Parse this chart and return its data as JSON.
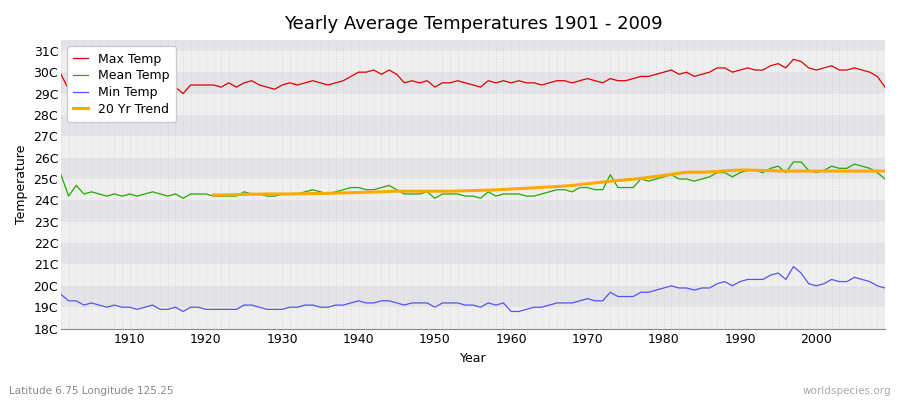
{
  "title": "Yearly Average Temperatures 1901 - 2009",
  "xlabel": "Year",
  "ylabel": "Temperature",
  "years": [
    1901,
    1902,
    1903,
    1904,
    1905,
    1906,
    1907,
    1908,
    1909,
    1910,
    1911,
    1912,
    1913,
    1914,
    1915,
    1916,
    1917,
    1918,
    1919,
    1920,
    1921,
    1922,
    1923,
    1924,
    1925,
    1926,
    1927,
    1928,
    1929,
    1930,
    1931,
    1932,
    1933,
    1934,
    1935,
    1936,
    1937,
    1938,
    1939,
    1940,
    1941,
    1942,
    1943,
    1944,
    1945,
    1946,
    1947,
    1948,
    1949,
    1950,
    1951,
    1952,
    1953,
    1954,
    1955,
    1956,
    1957,
    1958,
    1959,
    1960,
    1961,
    1962,
    1963,
    1964,
    1965,
    1966,
    1967,
    1968,
    1969,
    1970,
    1971,
    1972,
    1973,
    1974,
    1975,
    1976,
    1977,
    1978,
    1979,
    1980,
    1981,
    1982,
    1983,
    1984,
    1985,
    1986,
    1987,
    1988,
    1989,
    1990,
    1991,
    1992,
    1993,
    1994,
    1995,
    1996,
    1997,
    1998,
    1999,
    2000,
    2001,
    2002,
    2003,
    2004,
    2005,
    2006,
    2007,
    2008,
    2009
  ],
  "max_temp": [
    29.9,
    29.2,
    29.5,
    29.3,
    29.4,
    29.4,
    29.2,
    29.2,
    29.1,
    29.3,
    29.2,
    29.3,
    29.3,
    29.4,
    29.2,
    29.3,
    29.0,
    29.4,
    29.4,
    29.4,
    29.4,
    29.3,
    29.5,
    29.3,
    29.5,
    29.6,
    29.4,
    29.3,
    29.2,
    29.4,
    29.5,
    29.4,
    29.5,
    29.6,
    29.5,
    29.4,
    29.5,
    29.6,
    29.8,
    30.0,
    30.0,
    30.1,
    29.9,
    30.1,
    29.9,
    29.5,
    29.6,
    29.5,
    29.6,
    29.3,
    29.5,
    29.5,
    29.6,
    29.5,
    29.4,
    29.3,
    29.6,
    29.5,
    29.6,
    29.5,
    29.6,
    29.5,
    29.5,
    29.4,
    29.5,
    29.6,
    29.6,
    29.5,
    29.6,
    29.7,
    29.6,
    29.5,
    29.7,
    29.6,
    29.6,
    29.7,
    29.8,
    29.8,
    29.9,
    30.0,
    30.1,
    29.9,
    30.0,
    29.8,
    29.9,
    30.0,
    30.2,
    30.2,
    30.0,
    30.1,
    30.2,
    30.1,
    30.1,
    30.3,
    30.4,
    30.2,
    30.6,
    30.5,
    30.2,
    30.1,
    30.2,
    30.3,
    30.1,
    30.1,
    30.2,
    30.1,
    30.0,
    29.8,
    29.3
  ],
  "mean_temp": [
    25.2,
    24.2,
    24.7,
    24.3,
    24.4,
    24.3,
    24.2,
    24.3,
    24.2,
    24.3,
    24.2,
    24.3,
    24.4,
    24.3,
    24.2,
    24.3,
    24.1,
    24.3,
    24.3,
    24.3,
    24.2,
    24.2,
    24.2,
    24.2,
    24.4,
    24.3,
    24.3,
    24.2,
    24.2,
    24.3,
    24.3,
    24.3,
    24.4,
    24.5,
    24.4,
    24.3,
    24.4,
    24.5,
    24.6,
    24.6,
    24.5,
    24.5,
    24.6,
    24.7,
    24.5,
    24.3,
    24.3,
    24.3,
    24.4,
    24.1,
    24.3,
    24.3,
    24.3,
    24.2,
    24.2,
    24.1,
    24.4,
    24.2,
    24.3,
    24.3,
    24.3,
    24.2,
    24.2,
    24.3,
    24.4,
    24.5,
    24.5,
    24.4,
    24.6,
    24.6,
    24.5,
    24.5,
    25.2,
    24.6,
    24.6,
    24.6,
    25.0,
    24.9,
    25.0,
    25.1,
    25.2,
    25.0,
    25.0,
    24.9,
    25.0,
    25.1,
    25.3,
    25.3,
    25.1,
    25.3,
    25.4,
    25.4,
    25.3,
    25.5,
    25.6,
    25.3,
    25.8,
    25.8,
    25.4,
    25.3,
    25.4,
    25.6,
    25.5,
    25.5,
    25.7,
    25.6,
    25.5,
    25.3,
    25.0
  ],
  "min_temp": [
    19.6,
    19.3,
    19.3,
    19.1,
    19.2,
    19.1,
    19.0,
    19.1,
    19.0,
    19.0,
    18.9,
    19.0,
    19.1,
    18.9,
    18.9,
    19.0,
    18.8,
    19.0,
    19.0,
    18.9,
    18.9,
    18.9,
    18.9,
    18.9,
    19.1,
    19.1,
    19.0,
    18.9,
    18.9,
    18.9,
    19.0,
    19.0,
    19.1,
    19.1,
    19.0,
    19.0,
    19.1,
    19.1,
    19.2,
    19.3,
    19.2,
    19.2,
    19.3,
    19.3,
    19.2,
    19.1,
    19.2,
    19.2,
    19.2,
    19.0,
    19.2,
    19.2,
    19.2,
    19.1,
    19.1,
    19.0,
    19.2,
    19.1,
    19.2,
    18.8,
    18.8,
    18.9,
    19.0,
    19.0,
    19.1,
    19.2,
    19.2,
    19.2,
    19.3,
    19.4,
    19.3,
    19.3,
    19.7,
    19.5,
    19.5,
    19.5,
    19.7,
    19.7,
    19.8,
    19.9,
    20.0,
    19.9,
    19.9,
    19.8,
    19.9,
    19.9,
    20.1,
    20.2,
    20.0,
    20.2,
    20.3,
    20.3,
    20.3,
    20.5,
    20.6,
    20.3,
    20.9,
    20.6,
    20.1,
    20.0,
    20.1,
    20.3,
    20.2,
    20.2,
    20.4,
    20.3,
    20.2,
    20.0,
    19.9
  ],
  "trend_years": [
    1921,
    1922,
    1923,
    1924,
    1925,
    1926,
    1927,
    1928,
    1929,
    1930,
    1931,
    1932,
    1933,
    1934,
    1935,
    1936,
    1937,
    1938,
    1939,
    1940,
    1941,
    1942,
    1943,
    1944,
    1945,
    1946,
    1947,
    1948,
    1949,
    1950,
    1951,
    1952,
    1953,
    1954,
    1955,
    1956,
    1957,
    1958,
    1959,
    1960,
    1961,
    1962,
    1963,
    1964,
    1965,
    1966,
    1967,
    1968,
    1969,
    1970,
    1971,
    1972,
    1973,
    1974,
    1975,
    1976,
    1977,
    1978,
    1979,
    1980,
    1981,
    1982,
    1983,
    1984,
    1985,
    1986,
    1987,
    1988,
    1989,
    1990,
    1991,
    1992,
    1993,
    1994,
    1995,
    1996,
    1997,
    1998,
    1999,
    2000,
    2001,
    2002,
    2003,
    2004,
    2005,
    2006,
    2007,
    2008,
    2009
  ],
  "trend_temp": [
    24.25,
    24.25,
    24.26,
    24.27,
    24.28,
    24.29,
    24.29,
    24.3,
    24.3,
    24.3,
    24.3,
    24.31,
    24.31,
    24.32,
    24.32,
    24.33,
    24.34,
    24.35,
    24.36,
    24.37,
    24.38,
    24.39,
    24.4,
    24.42,
    24.43,
    24.43,
    24.43,
    24.43,
    24.43,
    24.43,
    24.43,
    24.43,
    24.44,
    24.45,
    24.46,
    24.47,
    24.48,
    24.49,
    24.51,
    24.53,
    24.55,
    24.57,
    24.59,
    24.61,
    24.63,
    24.65,
    24.67,
    24.7,
    24.74,
    24.78,
    24.82,
    24.86,
    24.9,
    24.93,
    24.96,
    24.99,
    25.03,
    25.07,
    25.12,
    25.17,
    25.22,
    25.27,
    25.32,
    25.32,
    25.32,
    25.33,
    25.35,
    25.38,
    25.4,
    25.42,
    25.42,
    25.41,
    25.4,
    25.39,
    25.38,
    25.37,
    25.37,
    25.37,
    25.37,
    25.37,
    25.37,
    25.37,
    25.37,
    25.37,
    25.37,
    25.37,
    25.37,
    25.37,
    25.37
  ],
  "ylim_min": 18,
  "ylim_max": 31.5,
  "yticks": [
    18,
    19,
    20,
    21,
    22,
    23,
    24,
    25,
    26,
    27,
    28,
    29,
    30,
    31
  ],
  "ytick_labels": [
    "18C",
    "19C",
    "20C",
    "21C",
    "22C",
    "23C",
    "24C",
    "25C",
    "26C",
    "27C",
    "28C",
    "29C",
    "30C",
    "31C"
  ],
  "xticks": [
    1910,
    1920,
    1930,
    1940,
    1950,
    1960,
    1970,
    1980,
    1990,
    2000
  ],
  "max_color": "#dd0000",
  "mean_color": "#22aa00",
  "min_color": "#5555ee",
  "trend_color": "#ffaa00",
  "bg_band_light": "#efefef",
  "bg_band_dark": "#e3e3e8",
  "vgrid_color": "#cccccc",
  "title_fontsize": 13,
  "axis_label_fontsize": 9,
  "tick_label_fontsize": 9,
  "legend_fontsize": 9,
  "bottom_left_text": "Latitude 6.75 Longitude 125.25",
  "bottom_right_text": "worldspecies.org"
}
